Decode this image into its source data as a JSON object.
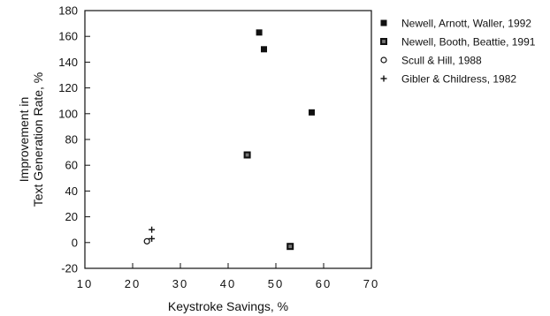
{
  "chart_data": {
    "type": "scatter",
    "xlabel": "Keystroke Savings, %",
    "ylabel": [
      "Improvement in",
      "Text Generation Rate, %"
    ],
    "xlim": [
      10,
      70
    ],
    "ylim": [
      -20,
      180
    ],
    "xticks": [
      10,
      20,
      30,
      40,
      50,
      60,
      70
    ],
    "yticks": [
      -20,
      0,
      20,
      40,
      60,
      80,
      100,
      120,
      140,
      160,
      180
    ],
    "grid": false,
    "legend_position": "right",
    "series": [
      {
        "name": "Newell, Arnott, Waller, 1992",
        "marker": "square-filled",
        "points": [
          [
            46.5,
            163
          ],
          [
            47.5,
            150
          ],
          [
            57.5,
            101
          ]
        ]
      },
      {
        "name": "Newell, Booth, Beattie, 1991",
        "marker": "square-outline-filled",
        "points": [
          [
            44,
            68
          ],
          [
            53,
            -3
          ]
        ]
      },
      {
        "name": "Scull & Hill, 1988",
        "marker": "circle-open",
        "points": [
          [
            23,
            1
          ]
        ]
      },
      {
        "name": "Gibler & Childress, 1982",
        "marker": "plus",
        "points": [
          [
            24,
            10
          ],
          [
            24,
            3
          ]
        ]
      }
    ]
  }
}
